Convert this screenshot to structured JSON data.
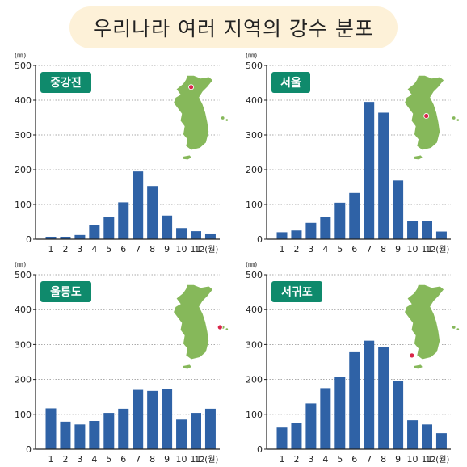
{
  "page": {
    "title": "우리나라 여러 지역의 강수 분포"
  },
  "colors": {
    "bar": "#2f62a6",
    "badge": "#0f8a6c",
    "map": "#86b85a",
    "marker": "#d9264a",
    "title_bg": "#fdf1d8"
  },
  "chart_data": [
    {
      "type": "bar",
      "title": "중강진",
      "unit": "(㎜)",
      "categories": [
        "1",
        "2",
        "3",
        "4",
        "5",
        "6",
        "7",
        "8",
        "9",
        "10",
        "11",
        "12(월)"
      ],
      "values": [
        7,
        7,
        12,
        40,
        63,
        106,
        195,
        153,
        68,
        32,
        23,
        14
      ],
      "ylim": [
        0,
        500
      ],
      "yticks": [
        0,
        100,
        200,
        300,
        400,
        500
      ],
      "grid": true
    },
    {
      "type": "bar",
      "title": "서울",
      "unit": "(㎜)",
      "categories": [
        "1",
        "2",
        "3",
        "4",
        "5",
        "6",
        "7",
        "8",
        "9",
        "10",
        "11",
        "12(월)"
      ],
      "values": [
        20,
        25,
        47,
        64,
        105,
        133,
        395,
        364,
        169,
        52,
        53,
        22
      ],
      "ylim": [
        0,
        500
      ],
      "yticks": [
        0,
        100,
        200,
        300,
        400,
        500
      ],
      "grid": true
    },
    {
      "type": "bar",
      "title": "울릉도",
      "unit": "(㎜)",
      "categories": [
        "1",
        "2",
        "3",
        "4",
        "5",
        "6",
        "7",
        "8",
        "9",
        "10",
        "11",
        "12(월)"
      ],
      "values": [
        117,
        79,
        71,
        81,
        104,
        116,
        170,
        167,
        172,
        85,
        104,
        116
      ],
      "ylim": [
        0,
        500
      ],
      "yticks": [
        0,
        100,
        200,
        300,
        400,
        500
      ],
      "grid": true
    },
    {
      "type": "bar",
      "title": "서귀포",
      "unit": "(㎜)",
      "categories": [
        "1",
        "2",
        "3",
        "4",
        "5",
        "6",
        "7",
        "8",
        "9",
        "10",
        "11",
        "12(월)"
      ],
      "values": [
        62,
        76,
        131,
        175,
        207,
        278,
        311,
        293,
        196,
        83,
        71,
        46
      ],
      "ylim": [
        0,
        500
      ],
      "yticks": [
        0,
        100,
        200,
        300,
        400,
        500
      ],
      "grid": true
    }
  ]
}
